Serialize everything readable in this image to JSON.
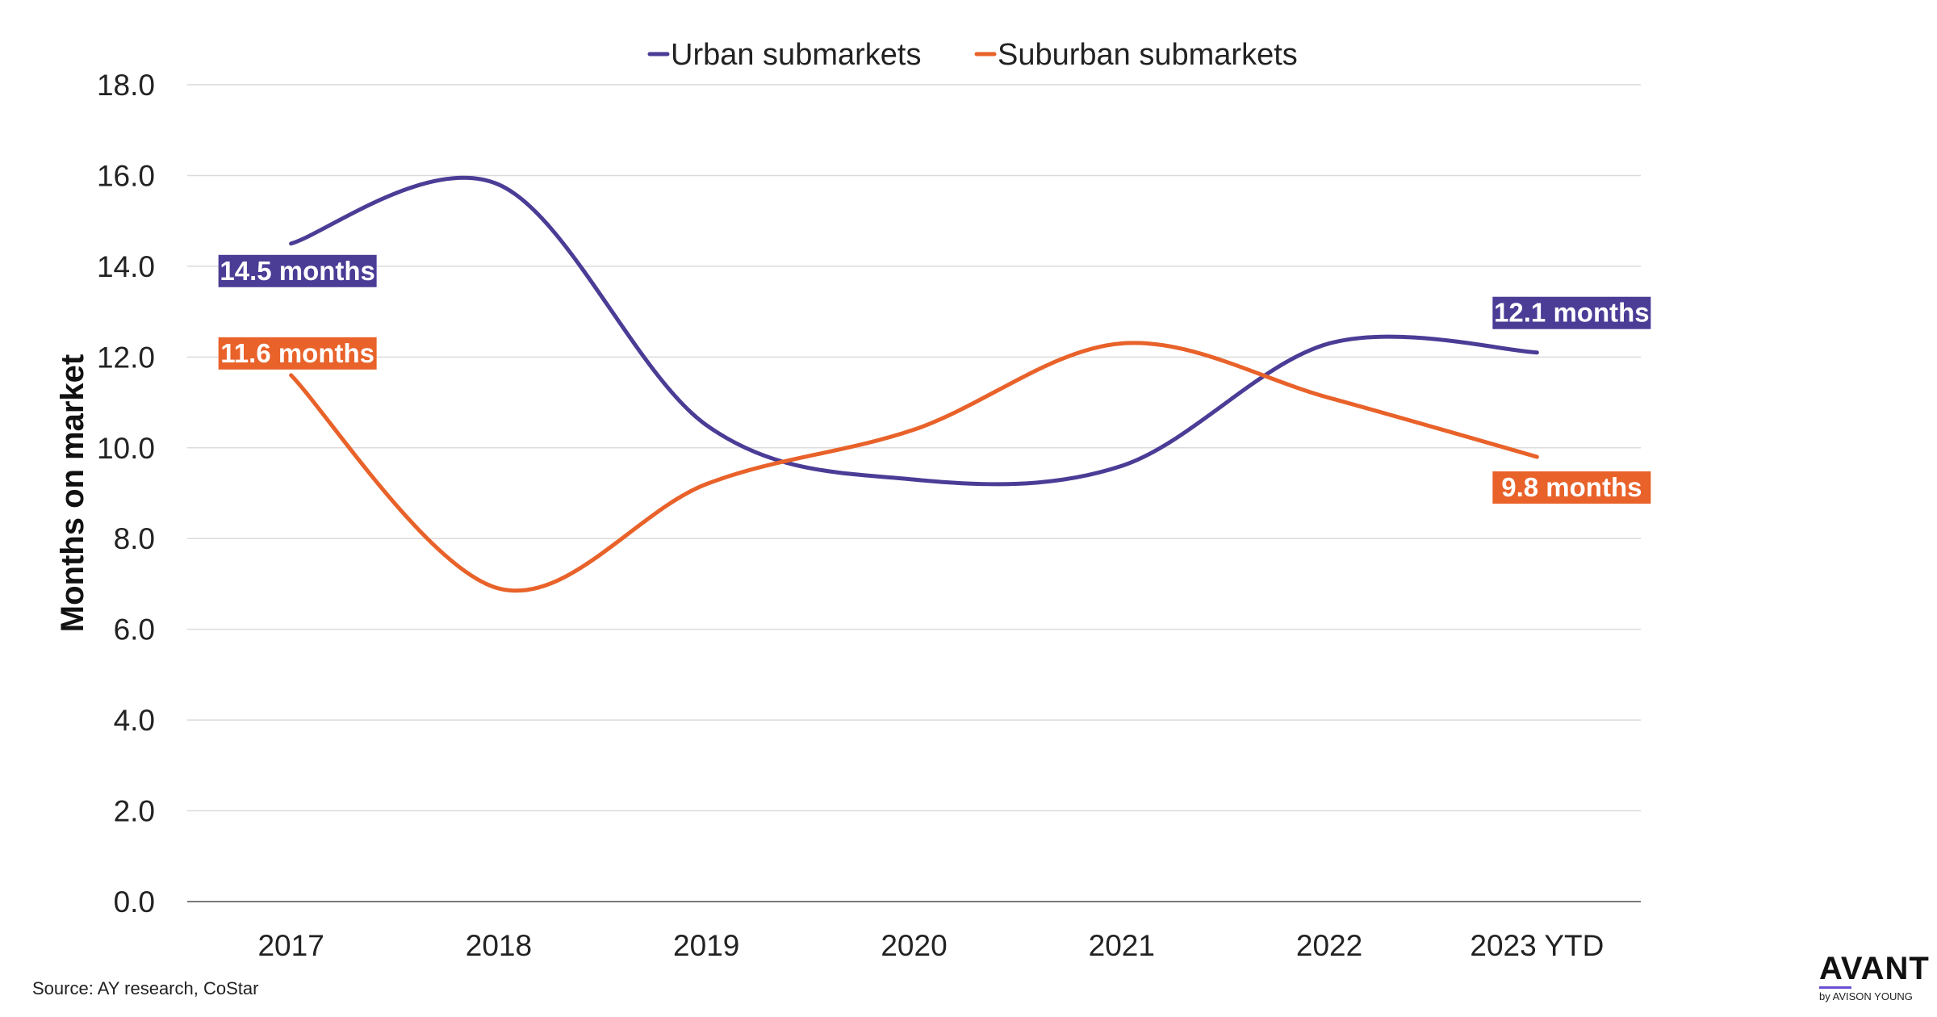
{
  "chart_data": {
    "type": "line",
    "categories": [
      "2017",
      "2018",
      "2019",
      "2020",
      "2021",
      "2022",
      "2023 YTD"
    ],
    "series": [
      {
        "name": "Urban submarkets",
        "color": "#4b3c96",
        "values": [
          14.5,
          15.8,
          10.5,
          9.3,
          9.6,
          12.3,
          12.1
        ],
        "labels": [
          {
            "index": 0,
            "text": "14.5 months"
          },
          {
            "index": 6,
            "text": "12.1 months"
          }
        ]
      },
      {
        "name": "Suburban submarkets",
        "color": "#e8622a",
        "values": [
          11.6,
          6.9,
          9.2,
          10.4,
          12.3,
          11.1,
          9.8
        ],
        "labels": [
          {
            "index": 0,
            "text": "11.6 months"
          },
          {
            "index": 6,
            "text": "9.8 months"
          }
        ]
      }
    ],
    "yticks": [
      "0.0",
      "2.0",
      "4.0",
      "6.0",
      "8.0",
      "10.0",
      "12.0",
      "14.0",
      "16.0",
      "18.0"
    ],
    "ylim": [
      0,
      18
    ],
    "ylabel": "Months on market",
    "xlabel": "",
    "grid": true,
    "legend": "top-center"
  },
  "source": "Source: AY research, CoStar",
  "logo": {
    "name": "AVANT",
    "sub": "by AVISON YOUNG",
    "accent": "#6a4fd1"
  }
}
